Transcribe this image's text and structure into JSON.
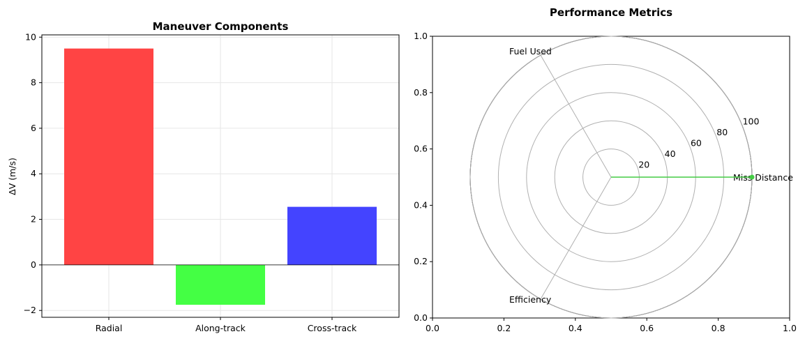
{
  "chart_data": [
    {
      "type": "bar",
      "title": "Maneuver Components",
      "xlabel": "",
      "ylabel": "ΔV (m/s)",
      "categories": [
        "Radial",
        "Along-track",
        "Cross-track"
      ],
      "values": [
        9.5,
        -1.75,
        2.55
      ],
      "colors": [
        "#ff4444",
        "#44ff44",
        "#4444ff"
      ],
      "ylim": [
        -2.3,
        10.1
      ],
      "yticks": [
        -2,
        0,
        2,
        4,
        6,
        8,
        10
      ],
      "ytick_labels": [
        "−2",
        "0",
        "2",
        "4",
        "6",
        "8",
        "10"
      ],
      "grid": true
    },
    {
      "type": "radar",
      "title": "Performance Metrics",
      "axes": [
        "Miss Distance",
        "Fuel Used",
        "Efficiency"
      ],
      "values": [
        100,
        0,
        0
      ],
      "marker_color": "#44cc44",
      "rlim": [
        0,
        100
      ],
      "rticks": [
        20,
        40,
        60,
        80,
        100
      ],
      "frame_xticks": [
        "0.0",
        "0.2",
        "0.4",
        "0.6",
        "0.8",
        "1.0"
      ],
      "frame_yticks": [
        "0.0",
        "0.2",
        "0.4",
        "0.6",
        "0.8",
        "1.0"
      ],
      "grid": true
    }
  ]
}
